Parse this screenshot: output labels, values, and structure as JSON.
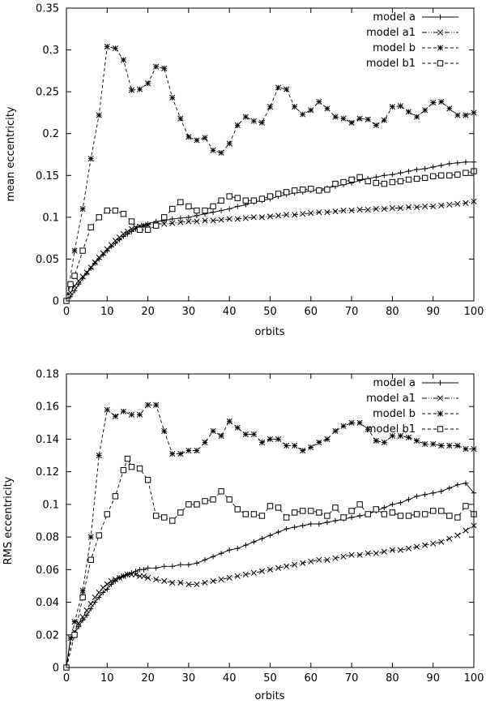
{
  "chart_data": [
    {
      "type": "line",
      "title": "",
      "xlabel": "orbits",
      "ylabel": "mean eccentricity",
      "xlim": [
        0,
        100
      ],
      "ylim": [
        0,
        0.35
      ],
      "xticks": [
        "0",
        "10",
        "20",
        "30",
        "40",
        "50",
        "60",
        "70",
        "80",
        "90",
        "100"
      ],
      "yticks": [
        "0",
        "0.05",
        "0.1",
        "0.15",
        "0.2",
        "0.25",
        "0.3",
        "0.35"
      ],
      "legend_position": "top-right",
      "series": [
        {
          "name": "model a",
          "style": "solid",
          "marker": "plus",
          "x": [
            0,
            1,
            2,
            3,
            4,
            5,
            6,
            7,
            8,
            9,
            10,
            11,
            12,
            13,
            14,
            15,
            16,
            17,
            18,
            19,
            20,
            22,
            24,
            26,
            28,
            30,
            32,
            34,
            36,
            38,
            40,
            42,
            44,
            46,
            48,
            50,
            52,
            54,
            56,
            58,
            60,
            62,
            64,
            66,
            68,
            70,
            72,
            74,
            76,
            78,
            80,
            82,
            84,
            86,
            88,
            90,
            92,
            94,
            96,
            98,
            100
          ],
          "y": [
            0.0,
            0.005,
            0.012,
            0.02,
            0.027,
            0.033,
            0.039,
            0.045,
            0.05,
            0.055,
            0.06,
            0.065,
            0.069,
            0.073,
            0.077,
            0.08,
            0.083,
            0.086,
            0.088,
            0.09,
            0.092,
            0.095,
            0.096,
            0.098,
            0.099,
            0.1,
            0.102,
            0.104,
            0.106,
            0.108,
            0.11,
            0.113,
            0.115,
            0.118,
            0.12,
            0.122,
            0.125,
            0.127,
            0.129,
            0.13,
            0.132,
            0.133,
            0.135,
            0.137,
            0.139,
            0.141,
            0.144,
            0.146,
            0.148,
            0.15,
            0.151,
            0.153,
            0.155,
            0.157,
            0.158,
            0.16,
            0.162,
            0.164,
            0.165,
            0.166,
            0.166
          ]
        },
        {
          "name": "model a1",
          "style": "dash-dot-dot",
          "marker": "x",
          "x": [
            0,
            1,
            2,
            3,
            4,
            5,
            6,
            7,
            8,
            9,
            10,
            11,
            12,
            13,
            14,
            15,
            16,
            17,
            18,
            19,
            20,
            22,
            24,
            26,
            28,
            30,
            32,
            34,
            36,
            38,
            40,
            42,
            44,
            46,
            48,
            50,
            52,
            54,
            56,
            58,
            60,
            62,
            64,
            66,
            68,
            70,
            72,
            74,
            76,
            78,
            80,
            82,
            84,
            86,
            88,
            90,
            92,
            94,
            96,
            98,
            100
          ],
          "y": [
            0.0,
            0.01,
            0.018,
            0.024,
            0.029,
            0.034,
            0.04,
            0.046,
            0.052,
            0.057,
            0.062,
            0.067,
            0.072,
            0.076,
            0.08,
            0.083,
            0.086,
            0.088,
            0.089,
            0.09,
            0.091,
            0.092,
            0.092,
            0.093,
            0.094,
            0.095,
            0.095,
            0.096,
            0.096,
            0.097,
            0.098,
            0.098,
            0.099,
            0.1,
            0.1,
            0.101,
            0.102,
            0.103,
            0.103,
            0.104,
            0.105,
            0.106,
            0.106,
            0.107,
            0.108,
            0.108,
            0.109,
            0.109,
            0.11,
            0.11,
            0.111,
            0.111,
            0.112,
            0.112,
            0.113,
            0.113,
            0.114,
            0.115,
            0.116,
            0.117,
            0.119
          ]
        },
        {
          "name": "model b",
          "style": "dashed",
          "marker": "star",
          "x": [
            0,
            2,
            4,
            6,
            8,
            10,
            12,
            14,
            16,
            18,
            20,
            22,
            24,
            26,
            28,
            30,
            32,
            34,
            36,
            38,
            40,
            42,
            44,
            46,
            48,
            50,
            52,
            54,
            56,
            58,
            60,
            62,
            64,
            66,
            68,
            70,
            72,
            74,
            76,
            78,
            80,
            82,
            84,
            86,
            88,
            90,
            92,
            94,
            96,
            98,
            100
          ],
          "y": [
            0.0,
            0.06,
            0.11,
            0.17,
            0.222,
            0.304,
            0.302,
            0.288,
            0.252,
            0.253,
            0.26,
            0.28,
            0.278,
            0.243,
            0.218,
            0.196,
            0.192,
            0.195,
            0.18,
            0.177,
            0.188,
            0.21,
            0.22,
            0.215,
            0.213,
            0.232,
            0.255,
            0.253,
            0.232,
            0.223,
            0.228,
            0.238,
            0.23,
            0.22,
            0.218,
            0.213,
            0.218,
            0.217,
            0.21,
            0.216,
            0.232,
            0.233,
            0.226,
            0.22,
            0.228,
            0.237,
            0.238,
            0.23,
            0.222,
            0.222,
            0.225
          ]
        },
        {
          "name": "model b1",
          "style": "dashed",
          "marker": "square",
          "x": [
            0,
            1,
            2,
            4,
            6,
            8,
            10,
            12,
            14,
            16,
            18,
            20,
            22,
            24,
            26,
            28,
            30,
            32,
            34,
            36,
            38,
            40,
            42,
            44,
            46,
            48,
            50,
            52,
            54,
            56,
            58,
            60,
            62,
            64,
            66,
            68,
            70,
            72,
            74,
            76,
            78,
            80,
            82,
            84,
            86,
            88,
            90,
            92,
            94,
            96,
            98,
            100
          ],
          "y": [
            0.0,
            0.02,
            0.03,
            0.06,
            0.088,
            0.1,
            0.108,
            0.108,
            0.104,
            0.095,
            0.085,
            0.085,
            0.09,
            0.1,
            0.11,
            0.118,
            0.113,
            0.108,
            0.108,
            0.113,
            0.12,
            0.125,
            0.123,
            0.12,
            0.12,
            0.122,
            0.125,
            0.128,
            0.13,
            0.132,
            0.133,
            0.134,
            0.132,
            0.133,
            0.14,
            0.142,
            0.145,
            0.148,
            0.143,
            0.141,
            0.14,
            0.142,
            0.143,
            0.145,
            0.146,
            0.147,
            0.149,
            0.15,
            0.15,
            0.151,
            0.153,
            0.155
          ]
        }
      ]
    },
    {
      "type": "line",
      "title": "",
      "xlabel": "orbits",
      "ylabel": "RMS eccentricity",
      "xlim": [
        0,
        100
      ],
      "ylim": [
        0,
        0.18
      ],
      "xticks": [
        "0",
        "10",
        "20",
        "30",
        "40",
        "50",
        "60",
        "70",
        "80",
        "90",
        "100"
      ],
      "yticks": [
        "0",
        "0.02",
        "0.04",
        "0.06",
        "0.08",
        "0.1",
        "0.12",
        "0.14",
        "0.16",
        "0.18"
      ],
      "legend_position": "top-right",
      "series": [
        {
          "name": "model a",
          "style": "solid",
          "marker": "plus",
          "x": [
            0,
            1,
            2,
            3,
            4,
            5,
            6,
            7,
            8,
            9,
            10,
            11,
            12,
            13,
            14,
            15,
            16,
            17,
            18,
            19,
            20,
            22,
            24,
            26,
            28,
            30,
            32,
            34,
            36,
            38,
            40,
            42,
            44,
            46,
            48,
            50,
            52,
            54,
            56,
            58,
            60,
            62,
            64,
            66,
            68,
            70,
            72,
            74,
            76,
            78,
            80,
            82,
            84,
            86,
            88,
            90,
            92,
            94,
            96,
            98,
            100
          ],
          "y": [
            0.0,
            0.018,
            0.021,
            0.025,
            0.029,
            0.032,
            0.036,
            0.04,
            0.043,
            0.046,
            0.048,
            0.051,
            0.053,
            0.055,
            0.056,
            0.057,
            0.058,
            0.059,
            0.06,
            0.06,
            0.061,
            0.061,
            0.062,
            0.062,
            0.063,
            0.063,
            0.064,
            0.066,
            0.068,
            0.07,
            0.072,
            0.073,
            0.075,
            0.077,
            0.079,
            0.081,
            0.083,
            0.085,
            0.086,
            0.087,
            0.088,
            0.088,
            0.089,
            0.09,
            0.091,
            0.092,
            0.093,
            0.094,
            0.096,
            0.098,
            0.1,
            0.101,
            0.103,
            0.105,
            0.106,
            0.107,
            0.108,
            0.11,
            0.112,
            0.113,
            0.107
          ]
        },
        {
          "name": "model a1",
          "style": "dash-dot-dot",
          "marker": "x",
          "x": [
            0,
            1,
            2,
            3,
            4,
            5,
            6,
            7,
            8,
            9,
            10,
            11,
            12,
            13,
            14,
            15,
            16,
            17,
            18,
            19,
            20,
            22,
            24,
            26,
            28,
            30,
            32,
            34,
            36,
            38,
            40,
            42,
            44,
            46,
            48,
            50,
            52,
            54,
            56,
            58,
            60,
            62,
            64,
            66,
            68,
            70,
            72,
            74,
            76,
            78,
            80,
            82,
            84,
            86,
            88,
            90,
            92,
            94,
            96,
            98,
            100
          ],
          "y": [
            0.0,
            0.018,
            0.022,
            0.027,
            0.031,
            0.035,
            0.039,
            0.043,
            0.046,
            0.049,
            0.051,
            0.053,
            0.054,
            0.055,
            0.056,
            0.057,
            0.057,
            0.057,
            0.056,
            0.056,
            0.055,
            0.054,
            0.053,
            0.052,
            0.052,
            0.051,
            0.051,
            0.052,
            0.053,
            0.054,
            0.055,
            0.056,
            0.057,
            0.058,
            0.059,
            0.06,
            0.061,
            0.062,
            0.063,
            0.064,
            0.065,
            0.066,
            0.066,
            0.067,
            0.068,
            0.069,
            0.069,
            0.07,
            0.07,
            0.071,
            0.072,
            0.072,
            0.073,
            0.074,
            0.075,
            0.076,
            0.077,
            0.079,
            0.081,
            0.084,
            0.087
          ]
        },
        {
          "name": "model b",
          "style": "dashed",
          "marker": "star",
          "x": [
            0,
            2,
            4,
            6,
            8,
            10,
            12,
            14,
            16,
            18,
            20,
            22,
            24,
            26,
            28,
            30,
            32,
            34,
            36,
            38,
            40,
            42,
            44,
            46,
            48,
            50,
            52,
            54,
            56,
            58,
            60,
            62,
            64,
            66,
            68,
            70,
            72,
            74,
            76,
            78,
            80,
            82,
            84,
            86,
            88,
            90,
            92,
            94,
            96,
            98,
            100
          ],
          "y": [
            0.0,
            0.028,
            0.047,
            0.08,
            0.13,
            0.158,
            0.154,
            0.157,
            0.155,
            0.155,
            0.161,
            0.161,
            0.145,
            0.131,
            0.131,
            0.133,
            0.133,
            0.138,
            0.145,
            0.142,
            0.151,
            0.147,
            0.143,
            0.143,
            0.138,
            0.14,
            0.14,
            0.136,
            0.136,
            0.133,
            0.135,
            0.138,
            0.14,
            0.145,
            0.148,
            0.15,
            0.15,
            0.146,
            0.139,
            0.138,
            0.142,
            0.142,
            0.141,
            0.139,
            0.137,
            0.137,
            0.136,
            0.136,
            0.136,
            0.134,
            0.134
          ]
        },
        {
          "name": "model b1",
          "style": "dashed",
          "marker": "square",
          "x": [
            0,
            2,
            4,
            6,
            8,
            10,
            12,
            14,
            15,
            16,
            18,
            20,
            22,
            24,
            26,
            28,
            30,
            32,
            34,
            36,
            38,
            40,
            42,
            44,
            46,
            48,
            50,
            52,
            54,
            56,
            58,
            60,
            62,
            64,
            66,
            68,
            70,
            72,
            74,
            76,
            78,
            80,
            82,
            84,
            86,
            88,
            90,
            92,
            94,
            96,
            98,
            100
          ],
          "y": [
            0.0,
            0.02,
            0.043,
            0.066,
            0.081,
            0.094,
            0.105,
            0.121,
            0.128,
            0.123,
            0.122,
            0.115,
            0.093,
            0.092,
            0.09,
            0.095,
            0.1,
            0.1,
            0.102,
            0.103,
            0.108,
            0.103,
            0.097,
            0.094,
            0.094,
            0.093,
            0.099,
            0.098,
            0.092,
            0.095,
            0.096,
            0.096,
            0.095,
            0.093,
            0.098,
            0.092,
            0.096,
            0.1,
            0.094,
            0.097,
            0.094,
            0.095,
            0.093,
            0.093,
            0.094,
            0.094,
            0.096,
            0.096,
            0.093,
            0.092,
            0.099,
            0.094
          ]
        }
      ]
    }
  ]
}
